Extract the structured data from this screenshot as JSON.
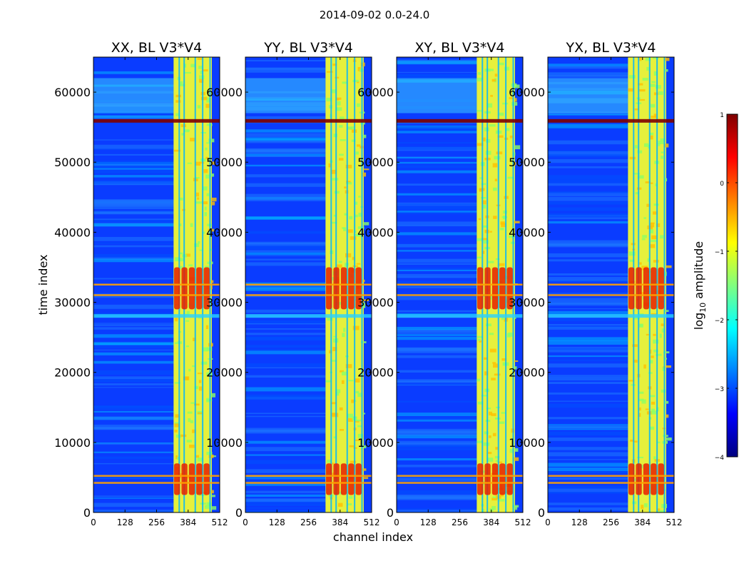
{
  "figure": {
    "title": "2014-09-02 0.0-24.0"
  },
  "chart_data": [
    {
      "type": "heatmap",
      "title": "XX, BL V3*V4",
      "xlabel": "",
      "ylabel": "time index",
      "xlim": [
        0,
        512
      ],
      "ylim": [
        0,
        65000
      ],
      "xticks": [
        0,
        128,
        256,
        384,
        512
      ],
      "yticks": [
        0,
        10000,
        20000,
        30000,
        40000,
        50000,
        60000
      ],
      "signal_band_channels": [
        325,
        480
      ],
      "bright_rows": [
        4200,
        5200,
        31000,
        32500,
        56000
      ],
      "color_scale": "log10 amplitude"
    },
    {
      "type": "heatmap",
      "title": "YY, BL V3*V4",
      "xlabel": "channel index",
      "ylabel": "",
      "xlim": [
        0,
        512
      ],
      "ylim": [
        0,
        65000
      ],
      "xticks": [
        0,
        128,
        256,
        384,
        512
      ],
      "yticks": [
        0,
        10000,
        20000,
        30000,
        40000,
        50000,
        60000
      ],
      "signal_band_channels": [
        325,
        480
      ],
      "bright_rows": [
        4200,
        5200,
        31000,
        32500,
        56000
      ],
      "color_scale": "log10 amplitude"
    },
    {
      "type": "heatmap",
      "title": "XY, BL V3*V4",
      "xlabel": "",
      "ylabel": "",
      "xlim": [
        0,
        512
      ],
      "ylim": [
        0,
        65000
      ],
      "xticks": [
        0,
        128,
        256,
        384,
        512
      ],
      "yticks": [
        0,
        10000,
        20000,
        30000,
        40000,
        50000,
        60000
      ],
      "signal_band_channels": [
        325,
        480
      ],
      "bright_rows": [
        4200,
        5200,
        31000,
        32500,
        56000
      ],
      "color_scale": "log10 amplitude"
    },
    {
      "type": "heatmap",
      "title": "YX, BL V3*V4",
      "xlabel": "",
      "ylabel": "",
      "xlim": [
        0,
        512
      ],
      "ylim": [
        0,
        65000
      ],
      "xticks": [
        0,
        128,
        256,
        384,
        512
      ],
      "yticks": [
        0,
        10000,
        20000,
        30000,
        40000,
        50000,
        60000
      ],
      "signal_band_channels": [
        325,
        480
      ],
      "bright_rows": [
        4200,
        5200,
        31000,
        32500,
        56000
      ],
      "color_scale": "log10 amplitude"
    }
  ],
  "colorbar": {
    "label_prefix": "log",
    "label_sub": "10",
    "label_suffix": " amplitude",
    "range": [
      -4,
      1
    ],
    "ticks": [
      1,
      0,
      -1,
      -2,
      -3,
      -4
    ],
    "tick_labels": [
      "1",
      "0",
      "−1",
      "−2",
      "−3",
      "−4"
    ],
    "colors": [
      "#00007f",
      "#0000ff",
      "#0080ff",
      "#00ffff",
      "#80ff80",
      "#ffff00",
      "#ff8000",
      "#ff0000",
      "#7f0000"
    ]
  }
}
